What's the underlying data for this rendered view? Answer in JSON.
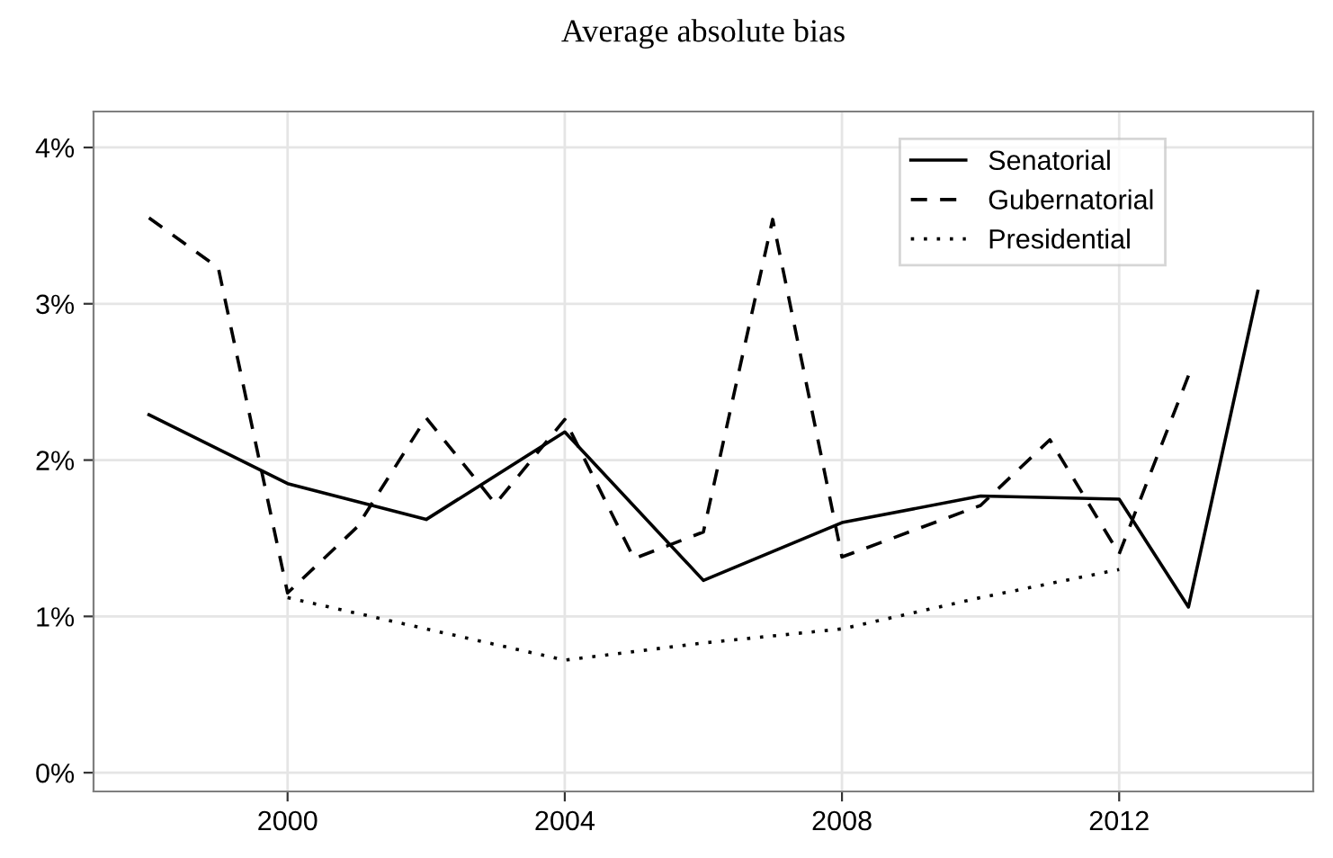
{
  "chart_data": {
    "type": "line",
    "title": "Average absolute bias",
    "series": [
      {
        "name": "Senatorial",
        "color": "#000000",
        "line_style": "solid",
        "x": [
          1998,
          2000,
          2002,
          2004,
          2006,
          2008,
          2010,
          2012,
          2013,
          2014
        ],
        "values": [
          2.29,
          1.85,
          1.62,
          2.18,
          1.23,
          1.6,
          1.77,
          1.75,
          1.06,
          3.08
        ]
      },
      {
        "name": "Gubernatorial",
        "color": "#000000",
        "line_style": "dashed",
        "x": [
          1998,
          1999,
          2000,
          2001,
          2002,
          2003,
          2004,
          2005,
          2006,
          2007,
          2008,
          2010,
          2011,
          2012,
          2013
        ],
        "values": [
          3.55,
          3.23,
          1.15,
          1.57,
          2.27,
          1.72,
          2.26,
          1.37,
          1.54,
          3.54,
          1.38,
          1.71,
          2.13,
          1.4,
          2.54
        ]
      },
      {
        "name": "Presidential",
        "color": "#000000",
        "line_style": "dotted",
        "x": [
          2000,
          2002,
          2004,
          2006,
          2008,
          2010,
          2012
        ],
        "values": [
          1.12,
          0.92,
          0.72,
          0.83,
          0.92,
          1.12,
          1.3
        ]
      }
    ],
    "xlim": [
      1997.2,
      2014.8
    ],
    "xticks": [
      2000,
      2004,
      2008,
      2012
    ],
    "ylim": [
      -0.12,
      4.23
    ],
    "yticks": [
      {
        "value": 0,
        "label": "0%"
      },
      {
        "value": 1,
        "label": "1%"
      },
      {
        "value": 2,
        "label": "2%"
      },
      {
        "value": 3,
        "label": "3%"
      },
      {
        "value": 4,
        "label": "4%"
      }
    ],
    "grid": true,
    "legend": "top right"
  }
}
